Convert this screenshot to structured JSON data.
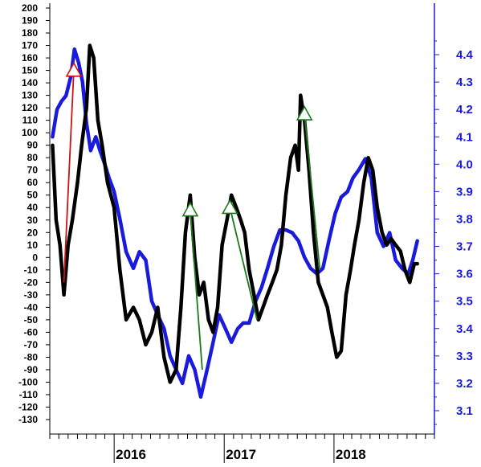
{
  "chart_data": {
    "type": "line",
    "title": "",
    "grid": false,
    "legend": "none",
    "x_range": [
      "2015-06",
      "2018-12"
    ],
    "x_year_labels": [
      "2016",
      "2017",
      "2018"
    ],
    "left_axis": {
      "min": -130,
      "max": 200,
      "step": 10,
      "ticks": [
        "200",
        "190",
        "180",
        "170",
        "160",
        "150",
        "140",
        "130",
        "120",
        "110",
        "100",
        "90",
        "80",
        "70",
        "60",
        "50",
        "40",
        "30",
        "20",
        "10",
        "0",
        "-10",
        "-20",
        "-30",
        "-40",
        "-50",
        "-60",
        "-70",
        "-80",
        "-90",
        "-100",
        "-110",
        "-120",
        "-130"
      ]
    },
    "right_axis": {
      "min": 3.05,
      "max": 4.45,
      "step": 0.1,
      "ticks": [
        "4.4",
        "4.3",
        "4.2",
        "4.1",
        "4.0",
        "3.9",
        "3.8",
        "3.7",
        "3.6",
        "3.5",
        "3.4",
        "3.3",
        "3.2",
        "3.1"
      ]
    },
    "series": [
      {
        "color": "#000000",
        "axis": "left",
        "points": [
          [
            "2015-06-10",
            90
          ],
          [
            "2015-06-22",
            30
          ],
          [
            "2015-07-05",
            10
          ],
          [
            "2015-07-18",
            -30
          ],
          [
            "2015-08-01",
            10
          ],
          [
            "2015-08-15",
            30
          ],
          [
            "2015-09-01",
            60
          ],
          [
            "2015-09-15",
            90
          ],
          [
            "2015-10-01",
            120
          ],
          [
            "2015-10-12",
            170
          ],
          [
            "2015-10-25",
            160
          ],
          [
            "2015-11-08",
            110
          ],
          [
            "2015-11-22",
            90
          ],
          [
            "2015-12-10",
            60
          ],
          [
            "2016-01-01",
            40
          ],
          [
            "2016-01-20",
            -10
          ],
          [
            "2016-02-10",
            -50
          ],
          [
            "2016-03-05",
            -40
          ],
          [
            "2016-03-25",
            -50
          ],
          [
            "2016-04-15",
            -70
          ],
          [
            "2016-05-05",
            -60
          ],
          [
            "2016-05-25",
            -40
          ],
          [
            "2016-06-15",
            -80
          ],
          [
            "2016-07-05",
            -100
          ],
          [
            "2016-07-25",
            -90
          ],
          [
            "2016-08-10",
            -40
          ],
          [
            "2016-08-25",
            20
          ],
          [
            "2016-09-10",
            50
          ],
          [
            "2016-09-25",
            0
          ],
          [
            "2016-10-10",
            -30
          ],
          [
            "2016-10-25",
            -20
          ],
          [
            "2016-11-10",
            -50
          ],
          [
            "2016-11-25",
            -60
          ],
          [
            "2016-12-10",
            -40
          ],
          [
            "2016-12-25",
            10
          ],
          [
            "2017-01-10",
            30
          ],
          [
            "2017-01-25",
            50
          ],
          [
            "2017-02-10",
            40
          ],
          [
            "2017-02-25",
            30
          ],
          [
            "2017-03-10",
            20
          ],
          [
            "2017-03-25",
            -10
          ],
          [
            "2017-04-10",
            -30
          ],
          [
            "2017-04-25",
            -50
          ],
          [
            "2017-05-10",
            -40
          ],
          [
            "2017-05-25",
            -30
          ],
          [
            "2017-06-10",
            -20
          ],
          [
            "2017-06-25",
            -10
          ],
          [
            "2017-07-10",
            10
          ],
          [
            "2017-07-25",
            50
          ],
          [
            "2017-08-10",
            80
          ],
          [
            "2017-08-25",
            90
          ],
          [
            "2017-09-05",
            70
          ],
          [
            "2017-09-12",
            130
          ],
          [
            "2017-09-25",
            110
          ],
          [
            "2017-10-10",
            70
          ],
          [
            "2017-10-25",
            20
          ],
          [
            "2017-11-10",
            -20
          ],
          [
            "2017-11-25",
            -30
          ],
          [
            "2017-12-10",
            -40
          ],
          [
            "2017-12-25",
            -60
          ],
          [
            "2018-01-10",
            -80
          ],
          [
            "2018-01-25",
            -75
          ],
          [
            "2018-02-10",
            -30
          ],
          [
            "2018-02-25",
            -10
          ],
          [
            "2018-03-10",
            10
          ],
          [
            "2018-03-25",
            30
          ],
          [
            "2018-04-10",
            60
          ],
          [
            "2018-04-25",
            80
          ],
          [
            "2018-05-10",
            70
          ],
          [
            "2018-05-25",
            40
          ],
          [
            "2018-06-10",
            20
          ],
          [
            "2018-06-25",
            10
          ],
          [
            "2018-07-10",
            15
          ],
          [
            "2018-07-25",
            10
          ],
          [
            "2018-08-10",
            5
          ],
          [
            "2018-08-25",
            -10
          ],
          [
            "2018-09-10",
            -20
          ],
          [
            "2018-09-25",
            -5
          ],
          [
            "2018-10-05",
            -5
          ]
        ]
      },
      {
        "color": "#1a1adc",
        "axis": "right",
        "points": [
          [
            "2015-06-10",
            4.1
          ],
          [
            "2015-06-25",
            4.2
          ],
          [
            "2015-07-10",
            4.23
          ],
          [
            "2015-07-25",
            4.25
          ],
          [
            "2015-08-10",
            4.32
          ],
          [
            "2015-08-22",
            4.42
          ],
          [
            "2015-09-05",
            4.37
          ],
          [
            "2015-09-18",
            4.3
          ],
          [
            "2015-10-01",
            4.15
          ],
          [
            "2015-10-15",
            4.05
          ],
          [
            "2015-11-01",
            4.1
          ],
          [
            "2015-11-15",
            4.05
          ],
          [
            "2015-12-01",
            4.0
          ],
          [
            "2015-12-15",
            3.95
          ],
          [
            "2016-01-01",
            3.9
          ],
          [
            "2016-01-20",
            3.8
          ],
          [
            "2016-02-10",
            3.68
          ],
          [
            "2016-03-05",
            3.62
          ],
          [
            "2016-03-25",
            3.68
          ],
          [
            "2016-04-15",
            3.65
          ],
          [
            "2016-05-05",
            3.5
          ],
          [
            "2016-05-25",
            3.45
          ],
          [
            "2016-06-15",
            3.4
          ],
          [
            "2016-07-05",
            3.3
          ],
          [
            "2016-07-25",
            3.25
          ],
          [
            "2016-08-15",
            3.2
          ],
          [
            "2016-09-05",
            3.3
          ],
          [
            "2016-09-25",
            3.25
          ],
          [
            "2016-10-15",
            3.15
          ],
          [
            "2016-11-05",
            3.25
          ],
          [
            "2016-11-25",
            3.35
          ],
          [
            "2016-12-15",
            3.45
          ],
          [
            "2017-01-05",
            3.4
          ],
          [
            "2017-01-25",
            3.35
          ],
          [
            "2017-02-15",
            3.4
          ],
          [
            "2017-03-05",
            3.42
          ],
          [
            "2017-03-25",
            3.42
          ],
          [
            "2017-04-15",
            3.5
          ],
          [
            "2017-05-05",
            3.55
          ],
          [
            "2017-05-25",
            3.62
          ],
          [
            "2017-06-15",
            3.7
          ],
          [
            "2017-07-05",
            3.76
          ],
          [
            "2017-07-25",
            3.76
          ],
          [
            "2017-08-15",
            3.75
          ],
          [
            "2017-09-05",
            3.72
          ],
          [
            "2017-09-25",
            3.66
          ],
          [
            "2017-10-15",
            3.62
          ],
          [
            "2017-11-05",
            3.6
          ],
          [
            "2017-11-25",
            3.62
          ],
          [
            "2017-12-15",
            3.72
          ],
          [
            "2018-01-05",
            3.82
          ],
          [
            "2018-01-25",
            3.88
          ],
          [
            "2018-02-15",
            3.9
          ],
          [
            "2018-03-05",
            3.95
          ],
          [
            "2018-03-25",
            3.98
          ],
          [
            "2018-04-15",
            4.02
          ],
          [
            "2018-05-05",
            3.95
          ],
          [
            "2018-05-25",
            3.75
          ],
          [
            "2018-06-15",
            3.7
          ],
          [
            "2018-07-05",
            3.75
          ],
          [
            "2018-07-25",
            3.65
          ],
          [
            "2018-08-15",
            3.62
          ],
          [
            "2018-09-05",
            3.6
          ],
          [
            "2018-09-20",
            3.65
          ],
          [
            "2018-10-05",
            3.72
          ]
        ]
      }
    ],
    "annotations": [
      {
        "kind": "arrow-line",
        "color": "#cc1111",
        "from": [
          "2015-07-18",
          -20
        ],
        "to": [
          "2015-08-20",
          150
        ],
        "marker": "triangle"
      },
      {
        "kind": "arrow-line",
        "color": "#1a7a1a",
        "from": [
          "2016-10-20",
          -90
        ],
        "to": [
          "2016-09-10",
          38
        ],
        "marker": "triangle"
      },
      {
        "kind": "arrow-line",
        "color": "#1a7a1a",
        "from": [
          "2017-04-20",
          -50
        ],
        "to": [
          "2017-01-20",
          40
        ],
        "marker": "triangle"
      },
      {
        "kind": "arrow-line",
        "color": "#1a7a1a",
        "from": [
          "2017-11-15",
          -10
        ],
        "to": [
          "2017-09-25",
          115
        ],
        "marker": "triangle"
      }
    ]
  }
}
